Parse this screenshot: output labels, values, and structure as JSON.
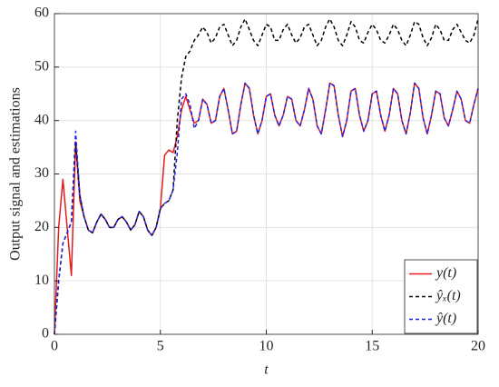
{
  "chart_data": {
    "type": "line",
    "xlabel": "t",
    "ylabel": "Output signal and estimations",
    "x": [
      0,
      0.2,
      0.4,
      0.6,
      0.8,
      1,
      1.2,
      1.4,
      1.6,
      1.8,
      2,
      2.2,
      2.4,
      2.6,
      2.8,
      3,
      3.2,
      3.4,
      3.6,
      3.8,
      4,
      4.2,
      4.4,
      4.6,
      4.8,
      5,
      5.2,
      5.4,
      5.6,
      5.8,
      6,
      6.2,
      6.4,
      6.6,
      6.8,
      7,
      7.2,
      7.4,
      7.6,
      7.8,
      8,
      8.2,
      8.4,
      8.6,
      8.8,
      9,
      9.2,
      9.4,
      9.6,
      9.8,
      10,
      10.2,
      10.4,
      10.6,
      10.8,
      11,
      11.2,
      11.4,
      11.6,
      11.8,
      12,
      12.2,
      12.4,
      12.6,
      12.8,
      13,
      13.2,
      13.4,
      13.6,
      13.8,
      14,
      14.2,
      14.4,
      14.6,
      14.8,
      15,
      15.2,
      15.4,
      15.6,
      15.8,
      16,
      16.2,
      16.4,
      16.6,
      16.8,
      17,
      17.2,
      17.4,
      17.6,
      17.8,
      18,
      18.2,
      18.4,
      18.6,
      18.8,
      19,
      19.2,
      19.4,
      19.6,
      19.8,
      20
    ],
    "series": [
      {
        "name": "y(t)",
        "color": "#e41a1c",
        "dash": "none",
        "values": [
          0,
          20,
          29,
          20,
          11,
          36,
          25,
          22,
          19.5,
          19,
          21,
          22.5,
          21.5,
          20,
          20,
          21.5,
          22,
          21,
          19.5,
          20.5,
          23,
          22,
          19.5,
          18.5,
          20,
          23.5,
          33.5,
          34.5,
          34,
          37,
          42,
          44.5,
          42,
          39.5,
          40,
          44,
          43,
          39.5,
          40,
          44.5,
          46,
          42,
          37.5,
          38,
          43,
          47,
          46,
          41,
          37.5,
          40,
          44.5,
          45,
          41,
          39,
          41,
          44.5,
          44,
          40,
          39,
          42,
          46,
          44,
          39,
          37.5,
          42,
          47,
          46.5,
          41,
          37,
          40,
          45.5,
          46,
          41,
          38,
          40,
          45,
          45.5,
          41,
          38,
          41,
          46,
          45,
          40,
          37.5,
          41.5,
          47,
          46,
          40.5,
          37.5,
          41,
          45.5,
          45,
          40.5,
          39,
          42,
          45.5,
          44,
          40,
          39.5,
          43,
          46
        ]
      },
      {
        "name": "ŷₓ(t)",
        "color": "#000000",
        "dash": "4,3",
        "values": [
          0,
          10,
          17,
          19,
          21,
          36,
          26,
          22,
          19.5,
          19,
          21,
          22.5,
          21.5,
          20,
          20,
          21.5,
          22,
          21,
          19.5,
          20.5,
          23,
          22,
          19.5,
          18.5,
          20,
          23.5,
          24.5,
          25,
          27,
          40,
          48,
          52,
          53,
          55,
          56,
          57.5,
          56.5,
          54.5,
          55.5,
          57.5,
          58,
          56,
          54,
          55,
          57.5,
          59,
          57,
          55,
          54,
          56,
          58,
          57.5,
          55,
          55,
          57,
          58,
          56,
          54.5,
          55.5,
          57.5,
          58,
          56,
          54,
          55,
          57.5,
          59,
          57.5,
          55,
          54,
          56,
          58.5,
          57.5,
          55,
          54.5,
          56.5,
          58,
          57,
          55,
          54.5,
          56,
          58,
          57,
          55,
          54,
          56,
          58.5,
          58,
          55.5,
          54,
          55.5,
          58,
          57,
          55,
          55,
          57,
          58,
          56.5,
          55,
          54.5,
          56,
          59
        ]
      },
      {
        "name": "ŷ(t)",
        "color": "#1f1fe0",
        "dash": "4,3",
        "values": [
          0,
          10,
          17,
          19,
          21,
          38,
          26,
          22,
          19.5,
          19,
          21,
          22.5,
          21.5,
          20,
          20,
          21.5,
          22,
          21,
          19.5,
          20.5,
          23,
          22,
          19.5,
          18.5,
          20,
          23.5,
          24.5,
          25,
          27,
          34,
          44,
          45,
          43,
          38.5,
          40,
          44,
          43,
          39.5,
          40,
          44.5,
          46,
          42,
          37.5,
          38,
          43,
          47,
          46,
          41,
          37.5,
          40,
          44.5,
          45,
          41,
          39,
          41,
          44.5,
          44,
          40,
          39,
          42,
          46,
          44,
          39,
          37.5,
          42,
          47,
          46.5,
          41,
          37,
          40,
          45.5,
          46,
          41,
          38,
          40,
          45,
          45.5,
          41,
          38,
          41,
          46,
          45,
          40,
          37.5,
          41.5,
          47,
          46,
          40.5,
          37.5,
          41,
          45.5,
          45,
          40.5,
          39,
          42,
          45.5,
          44,
          40,
          39.5,
          43,
          46
        ]
      }
    ],
    "xlim": [
      0,
      20
    ],
    "xticks": [
      0,
      5,
      10,
      15,
      20
    ],
    "ylim": [
      0,
      60
    ],
    "yticks": [
      0,
      10,
      20,
      30,
      40,
      50,
      60
    ],
    "grid": true,
    "legend": "lower right"
  }
}
